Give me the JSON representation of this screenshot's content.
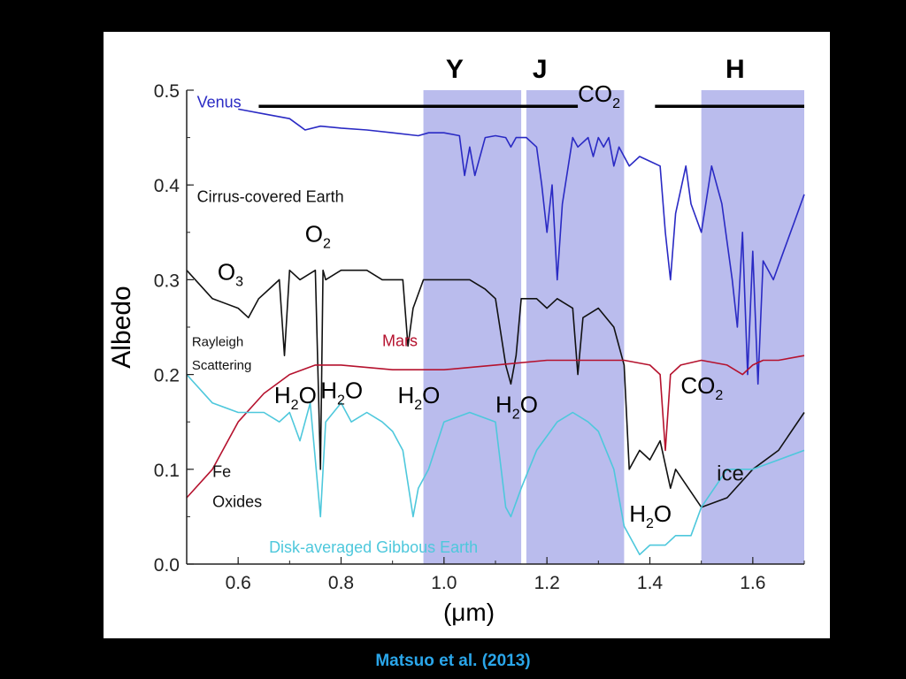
{
  "caption": "Matsuo et al. (2013)",
  "chart_data": {
    "type": "line",
    "xlabel": "(μm)",
    "ylabel": "Albedo",
    "xlim": [
      0.5,
      1.7
    ],
    "ylim": [
      0.0,
      0.5
    ],
    "x_ticks": [
      "0.6",
      "0.8",
      "1.0",
      "1.2",
      "1.4",
      "1.6"
    ],
    "y_ticks": [
      "0.0",
      "0.1",
      "0.2",
      "0.3",
      "0.4",
      "0.5"
    ],
    "bands": [
      {
        "name": "Y",
        "range": [
          0.96,
          1.15
        ],
        "color": "#aeb0ea"
      },
      {
        "name": "J",
        "range": [
          1.16,
          1.35
        ],
        "color": "#aeb0ea"
      },
      {
        "name": "H",
        "range": [
          1.5,
          1.7
        ],
        "color": "#aeb0ea"
      }
    ],
    "series": [
      {
        "name": "Venus",
        "color": "#2a2ac4",
        "x": [
          0.6,
          0.65,
          0.7,
          0.72,
          0.73,
          0.76,
          0.8,
          0.85,
          0.9,
          0.95,
          0.97,
          1.0,
          1.03,
          1.04,
          1.05,
          1.06,
          1.08,
          1.1,
          1.12,
          1.13,
          1.14,
          1.16,
          1.18,
          1.19,
          1.2,
          1.21,
          1.22,
          1.23,
          1.25,
          1.26,
          1.28,
          1.29,
          1.3,
          1.31,
          1.32,
          1.33,
          1.34,
          1.36,
          1.38,
          1.4,
          1.42,
          1.43,
          1.44,
          1.45,
          1.47,
          1.48,
          1.5,
          1.52,
          1.54,
          1.56,
          1.57,
          1.58,
          1.59,
          1.6,
          1.61,
          1.62,
          1.64,
          1.66,
          1.68,
          1.7
        ],
        "y": [
          0.48,
          0.475,
          0.47,
          0.462,
          0.458,
          0.462,
          0.46,
          0.458,
          0.455,
          0.452,
          0.455,
          0.455,
          0.452,
          0.41,
          0.44,
          0.41,
          0.45,
          0.452,
          0.45,
          0.44,
          0.45,
          0.45,
          0.44,
          0.4,
          0.35,
          0.4,
          0.3,
          0.38,
          0.45,
          0.44,
          0.45,
          0.43,
          0.45,
          0.44,
          0.45,
          0.42,
          0.44,
          0.42,
          0.43,
          0.425,
          0.42,
          0.35,
          0.3,
          0.37,
          0.42,
          0.38,
          0.35,
          0.42,
          0.38,
          0.3,
          0.25,
          0.35,
          0.2,
          0.33,
          0.19,
          0.32,
          0.3,
          0.33,
          0.36,
          0.39
        ]
      },
      {
        "name": "Cirrus-covered Earth",
        "color": "#111111",
        "x": [
          0.5,
          0.55,
          0.6,
          0.62,
          0.64,
          0.66,
          0.68,
          0.69,
          0.7,
          0.72,
          0.75,
          0.76,
          0.765,
          0.77,
          0.8,
          0.85,
          0.88,
          0.9,
          0.92,
          0.93,
          0.94,
          0.96,
          1.0,
          1.05,
          1.08,
          1.1,
          1.12,
          1.13,
          1.14,
          1.15,
          1.18,
          1.2,
          1.22,
          1.25,
          1.26,
          1.27,
          1.3,
          1.33,
          1.35,
          1.36,
          1.38,
          1.4,
          1.42,
          1.44,
          1.45,
          1.5,
          1.55,
          1.6,
          1.65,
          1.7
        ],
        "y": [
          0.31,
          0.28,
          0.27,
          0.26,
          0.28,
          0.29,
          0.3,
          0.22,
          0.31,
          0.3,
          0.31,
          0.1,
          0.31,
          0.3,
          0.31,
          0.31,
          0.3,
          0.3,
          0.3,
          0.23,
          0.27,
          0.3,
          0.3,
          0.3,
          0.29,
          0.28,
          0.21,
          0.19,
          0.22,
          0.28,
          0.28,
          0.27,
          0.28,
          0.27,
          0.2,
          0.26,
          0.27,
          0.25,
          0.21,
          0.1,
          0.12,
          0.11,
          0.13,
          0.08,
          0.1,
          0.06,
          0.07,
          0.1,
          0.12,
          0.16
        ]
      },
      {
        "name": "Mars",
        "color": "#b5122e",
        "x": [
          0.5,
          0.55,
          0.6,
          0.65,
          0.7,
          0.75,
          0.8,
          0.9,
          1.0,
          1.1,
          1.2,
          1.3,
          1.35,
          1.4,
          1.42,
          1.43,
          1.44,
          1.46,
          1.5,
          1.55,
          1.58,
          1.6,
          1.62,
          1.65,
          1.7
        ],
        "y": [
          0.07,
          0.1,
          0.15,
          0.18,
          0.2,
          0.21,
          0.21,
          0.205,
          0.205,
          0.21,
          0.215,
          0.215,
          0.215,
          0.21,
          0.2,
          0.12,
          0.2,
          0.21,
          0.215,
          0.21,
          0.2,
          0.21,
          0.215,
          0.215,
          0.22
        ]
      },
      {
        "name": "Disk-averaged Gibbous Earth",
        "color": "#4ec8dc",
        "x": [
          0.5,
          0.55,
          0.6,
          0.65,
          0.68,
          0.7,
          0.72,
          0.74,
          0.76,
          0.77,
          0.8,
          0.82,
          0.85,
          0.88,
          0.9,
          0.92,
          0.94,
          0.95,
          0.97,
          1.0,
          1.05,
          1.1,
          1.12,
          1.13,
          1.15,
          1.18,
          1.22,
          1.25,
          1.28,
          1.3,
          1.33,
          1.35,
          1.38,
          1.4,
          1.43,
          1.45,
          1.48,
          1.5,
          1.55,
          1.6,
          1.65,
          1.7
        ],
        "y": [
          0.2,
          0.17,
          0.16,
          0.16,
          0.15,
          0.16,
          0.13,
          0.17,
          0.05,
          0.15,
          0.17,
          0.15,
          0.16,
          0.15,
          0.14,
          0.12,
          0.05,
          0.08,
          0.1,
          0.15,
          0.16,
          0.15,
          0.06,
          0.05,
          0.08,
          0.12,
          0.15,
          0.16,
          0.15,
          0.14,
          0.1,
          0.04,
          0.01,
          0.02,
          0.02,
          0.03,
          0.03,
          0.06,
          0.1,
          0.1,
          0.11,
          0.12
        ]
      }
    ],
    "annotations": [
      {
        "text": "Venus",
        "x": 0.52,
        "y": 0.482,
        "color": "#2a2ac4"
      },
      {
        "text": "Cirrus-covered Earth",
        "x": 0.52,
        "y": 0.382,
        "color": "#111111"
      },
      {
        "text": "Mars",
        "x": 0.88,
        "y": 0.23,
        "color": "#b5122e"
      },
      {
        "text": "Disk-averaged Gibbous Earth",
        "x": 0.66,
        "y": 0.012,
        "color": "#4ec8dc"
      },
      {
        "text": "Rayleigh",
        "x": 0.51,
        "y": 0.23,
        "color": "#111111"
      },
      {
        "text": "Scattering",
        "x": 0.51,
        "y": 0.205,
        "color": "#111111"
      },
      {
        "text": "Fe",
        "x": 0.55,
        "y": 0.092,
        "color": "#111111"
      },
      {
        "text": "Oxides",
        "x": 0.55,
        "y": 0.06,
        "color": "#111111"
      },
      {
        "text": "ice",
        "x": 1.53,
        "y": 0.088,
        "color": "#111111"
      }
    ],
    "molecule_labels": [
      {
        "base": "O",
        "sub": "3",
        "x": 0.56,
        "y": 0.3
      },
      {
        "base": "O",
        "sub": "2",
        "x": 0.73,
        "y": 0.34
      },
      {
        "base": "H",
        "sub": "2",
        "tail": "O",
        "x": 0.67,
        "y": 0.17
      },
      {
        "base": "H",
        "sub": "2",
        "tail": "O",
        "x": 0.76,
        "y": 0.175
      },
      {
        "base": "H",
        "sub": "2",
        "tail": "O",
        "x": 0.91,
        "y": 0.17
      },
      {
        "base": "H",
        "sub": "2",
        "tail": "O",
        "x": 1.1,
        "y": 0.16
      },
      {
        "base": "H",
        "sub": "2",
        "tail": "O",
        "x": 1.36,
        "y": 0.045
      },
      {
        "base": "CO",
        "sub": "2",
        "x": 1.26,
        "y": 0.488
      },
      {
        "base": "CO",
        "sub": "2",
        "x": 1.46,
        "y": 0.18
      }
    ],
    "co2_bar": {
      "segments": [
        [
          0.64,
          1.26
        ],
        [
          1.41,
          1.7
        ]
      ],
      "y": 0.483
    }
  }
}
